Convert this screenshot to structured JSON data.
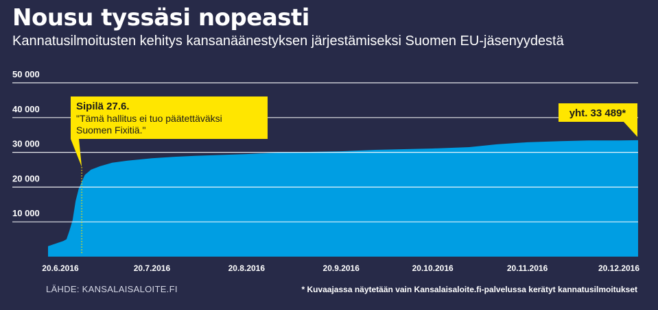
{
  "title": "Nousu tyssäsi nopeasti",
  "subtitle": "Kannatusilmoitusten kehitys kansanäänestyksen järjestämiseksi Suomen EU-jäsenyydestä",
  "source": "LÄHDE: KANSALAISALOITE.FI",
  "footnote": "* Kuvaajassa näytetään vain Kansalaisaloite.fi-palvelussa kerätyt kannatusilmoitukset",
  "colors": {
    "background": "#272a48",
    "area": "#009ee3",
    "callout": "#ffe600",
    "callout_text": "#1a1a1a",
    "grid": "#ffffff"
  },
  "chart_data": {
    "type": "area",
    "title": "",
    "xlabel": "",
    "ylabel": "",
    "ylim": [
      0,
      50000
    ],
    "grid": true,
    "y_ticks": [
      10000,
      20000,
      30000,
      40000,
      50000
    ],
    "y_tick_labels": [
      "10 000",
      "20 000",
      "30 000",
      "40 000",
      "50 000"
    ],
    "x_tick_labels": [
      "20.6.2016",
      "20.7.2016",
      "20.8.2016",
      "20.9.2016",
      "20.10.2016",
      "20.11.2016",
      "20.12.2016"
    ],
    "x_ticks": [
      "2016-06-20",
      "2016-07-20",
      "2016-08-20",
      "2016-09-20",
      "2016-10-20",
      "2016-11-20",
      "2016-12-20"
    ],
    "series": [
      {
        "points": [
          [
            "2016-06-20",
            3000
          ],
          [
            "2016-06-21",
            4500
          ],
          [
            "2016-06-22",
            5000
          ],
          [
            "2016-06-23",
            7500
          ],
          [
            "2016-06-24",
            10500
          ],
          [
            "2016-06-25",
            16000
          ],
          [
            "2016-06-26",
            19500
          ],
          [
            "2016-06-27",
            21500
          ],
          [
            "2016-06-28",
            23500
          ],
          [
            "2016-06-30",
            25000
          ],
          [
            "2016-07-03",
            26000
          ],
          [
            "2016-07-07",
            27000
          ],
          [
            "2016-07-12",
            27600
          ],
          [
            "2016-07-20",
            28300
          ],
          [
            "2016-07-27",
            28700
          ],
          [
            "2016-08-03",
            29000
          ],
          [
            "2016-08-20",
            29500
          ],
          [
            "2016-09-01",
            30000
          ],
          [
            "2016-09-20",
            30300
          ],
          [
            "2016-10-01",
            30700
          ],
          [
            "2016-10-20",
            31100
          ],
          [
            "2016-11-01",
            31500
          ],
          [
            "2016-11-10",
            32300
          ],
          [
            "2016-11-20",
            32900
          ],
          [
            "2016-12-01",
            33200
          ],
          [
            "2016-12-10",
            33400
          ],
          [
            "2016-12-20",
            33400
          ],
          [
            "2016-12-27",
            33489
          ]
        ]
      }
    ],
    "annotations": [
      {
        "date": "2016-06-27",
        "heading": "Sipilä 27.6.",
        "lines": [
          "\"Tämä hallitus ei tuo päätettäväksi",
          "Suomen Fixitiä.\""
        ]
      },
      {
        "date": "2016-12-27",
        "text": "yht. 33 489*"
      }
    ]
  }
}
